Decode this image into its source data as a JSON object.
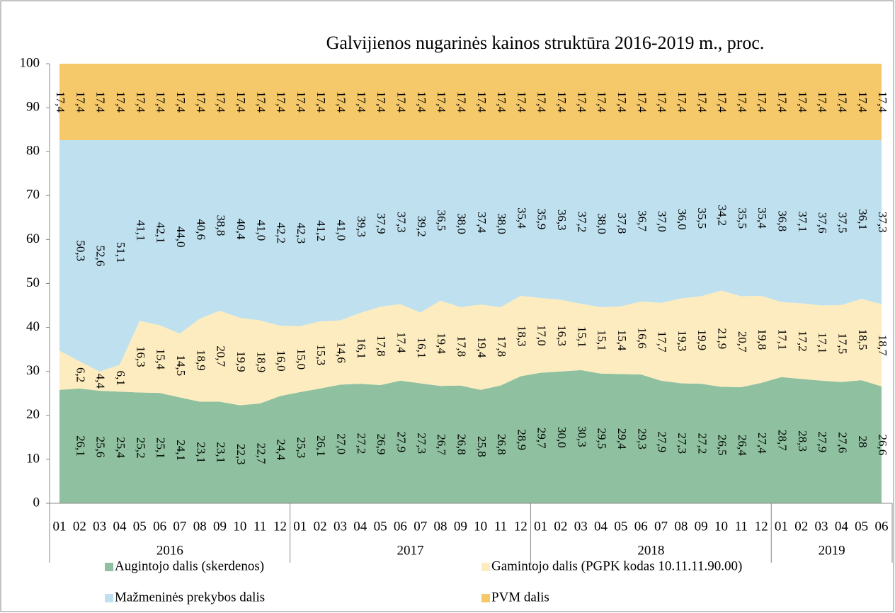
{
  "chart_data": {
    "type": "stacked_area",
    "title": "Galvijienos nugarinės kainos struktūra 2016-2019 m., proc.",
    "categories": [
      "01",
      "02",
      "03",
      "04",
      "05",
      "06",
      "07",
      "08",
      "09",
      "10",
      "11",
      "12",
      "01",
      "02",
      "03",
      "04",
      "05",
      "06",
      "07",
      "08",
      "09",
      "10",
      "11",
      "12",
      "01",
      "02",
      "03",
      "04",
      "05",
      "06",
      "07",
      "08",
      "09",
      "10",
      "11",
      "12",
      "01",
      "02",
      "03",
      "04",
      "05",
      "06"
    ],
    "years": [
      "2016",
      "2017",
      "2018",
      "2019"
    ],
    "ylim": [
      0,
      100
    ],
    "yticks": [
      0,
      10,
      20,
      30,
      40,
      50,
      60,
      70,
      80,
      90,
      100
    ],
    "grid": false,
    "legend": "bottom",
    "series": [
      {
        "name": "Augintojo dalis (skerdenos)",
        "color": "#8fc1a0",
        "values": [
          25.8,
          26.1,
          25.6,
          25.4,
          25.2,
          25.1,
          24.1,
          23.1,
          23.1,
          22.3,
          22.7,
          24.4,
          25.3,
          26.1,
          27.0,
          27.2,
          26.9,
          27.9,
          27.3,
          26.7,
          26.8,
          25.8,
          26.8,
          28.9,
          29.7,
          30.0,
          30.3,
          29.5,
          29.4,
          29.3,
          27.9,
          27.3,
          27.2,
          26.5,
          26.4,
          27.4,
          28.7,
          28.3,
          27.9,
          27.6,
          28,
          26.6
        ],
        "value_labels": [
          null,
          "26,1",
          "25,6",
          "25,4",
          "25,2",
          "25,1",
          "24,1",
          "23,1",
          "23,1",
          "22,3",
          "22,7",
          "24,4",
          "25,3",
          "26,1",
          "27,0",
          "27,2",
          "26,9",
          "27,9",
          "27,3",
          "26,7",
          "26,8",
          "25,8",
          "26,8",
          "28,9",
          "29,7",
          "30,0",
          "30,3",
          "29,5",
          "29,4",
          "29,3",
          "27,9",
          "27,3",
          "27,2",
          "26,5",
          "26,4",
          "27,4",
          "28,7",
          "28,3",
          "27,9",
          "27,6",
          "28",
          "26,6"
        ]
      },
      {
        "name": "Gamintojo dalis (PGPK kodas 10.11.11.90.00)",
        "color": "#fdecbf",
        "values": [
          8.9,
          6.2,
          4.4,
          6.1,
          16.3,
          15.4,
          14.5,
          18.9,
          20.7,
          19.9,
          18.9,
          16.0,
          15.0,
          15.3,
          14.6,
          16.1,
          17.8,
          17.4,
          16.1,
          19.4,
          17.8,
          19.4,
          17.8,
          18.3,
          17.0,
          16.3,
          15.1,
          15.1,
          15.4,
          16.6,
          17.7,
          19.3,
          19.9,
          21.9,
          20.7,
          19.8,
          17.1,
          17.2,
          17.1,
          17.5,
          18.5,
          18.7
        ],
        "value_labels": [
          null,
          "6,2",
          "4,4",
          "6,1",
          "16,3",
          "15,4",
          "14,5",
          "18,9",
          "20,7",
          "19,9",
          "18,9",
          "16,0",
          "15,0",
          "15,3",
          "14,6",
          "16,1",
          "17,8",
          "17,4",
          "16,1",
          "19,4",
          "17,8",
          "19,4",
          "17,8",
          "18,3",
          "17,0",
          "16,3",
          "15,1",
          "15,1",
          "15,4",
          "16,6",
          "17,7",
          "19,3",
          "19,9",
          "21,9",
          "20,7",
          "19,8",
          "17,1",
          "17,2",
          "17,1",
          "17,5",
          "18,5",
          "18,7"
        ]
      },
      {
        "name": "Mažmeninės prekybos dalis",
        "color": "#bfe0ee",
        "values": [
          47.9,
          50.3,
          52.6,
          51.1,
          41.1,
          42.1,
          44.0,
          40.6,
          38.8,
          40.4,
          41.0,
          42.2,
          42.3,
          41.2,
          41.0,
          39.3,
          37.9,
          37.3,
          39.2,
          36.5,
          38.0,
          37.4,
          38.0,
          35.4,
          35.9,
          36.3,
          37.2,
          38.0,
          37.8,
          36.7,
          37.0,
          36.0,
          35.5,
          34.2,
          35.5,
          35.4,
          36.8,
          37.1,
          37.6,
          37.5,
          36.1,
          37.3
        ],
        "value_labels": [
          null,
          "50,3",
          "52,6",
          "51,1",
          "41,1",
          "42,1",
          "44,0",
          "40,6",
          "38,8",
          "40,4",
          "41,0",
          "42,2",
          "42,3",
          "41,2",
          "41,0",
          "39,3",
          "37,9",
          "37,3",
          "39,2",
          "36,5",
          "38,0",
          "37,4",
          "38,0",
          "35,4",
          "35,9",
          "36,3",
          "37,2",
          "38,0",
          "37,8",
          "36,7",
          "37,0",
          "36,0",
          "35,5",
          "34,2",
          "35,5",
          "35,4",
          "36,8",
          "37,1",
          "37,6",
          "37,5",
          "36,1",
          "37,3"
        ]
      },
      {
        "name": "PVM dalis",
        "color": "#f5c86a",
        "values": [
          17.4,
          17.4,
          17.4,
          17.4,
          17.4,
          17.4,
          17.4,
          17.4,
          17.4,
          17.4,
          17.4,
          17.4,
          17.4,
          17.4,
          17.4,
          17.4,
          17.4,
          17.4,
          17.4,
          17.4,
          17.4,
          17.4,
          17.4,
          17.4,
          17.4,
          17.4,
          17.4,
          17.4,
          17.4,
          17.4,
          17.4,
          17.4,
          17.4,
          17.4,
          17.4,
          17.4,
          17.4,
          17.4,
          17.4,
          17.4,
          17.4,
          17.4
        ],
        "value_labels": [
          "17,4",
          "17,4",
          "17,4",
          "17,4",
          "17,4",
          "17,4",
          "17,4",
          "17,4",
          "17,4",
          "17,4",
          "17,4",
          "17,4",
          "17,4",
          "17,4",
          "17,4",
          "17,4",
          "17,4",
          "17,4",
          "17,4",
          "17,4",
          "17,4",
          "17,4",
          "17,4",
          "17,4",
          "17,4",
          "17,4",
          "17,4",
          "17,4",
          "17,4",
          "17,4",
          "17,4",
          "17,4",
          "17,4",
          "17,4",
          "17,4",
          "17,4",
          "17,4",
          "17,4",
          "17,4",
          "17,4",
          "17,4",
          "17,4"
        ]
      }
    ]
  }
}
